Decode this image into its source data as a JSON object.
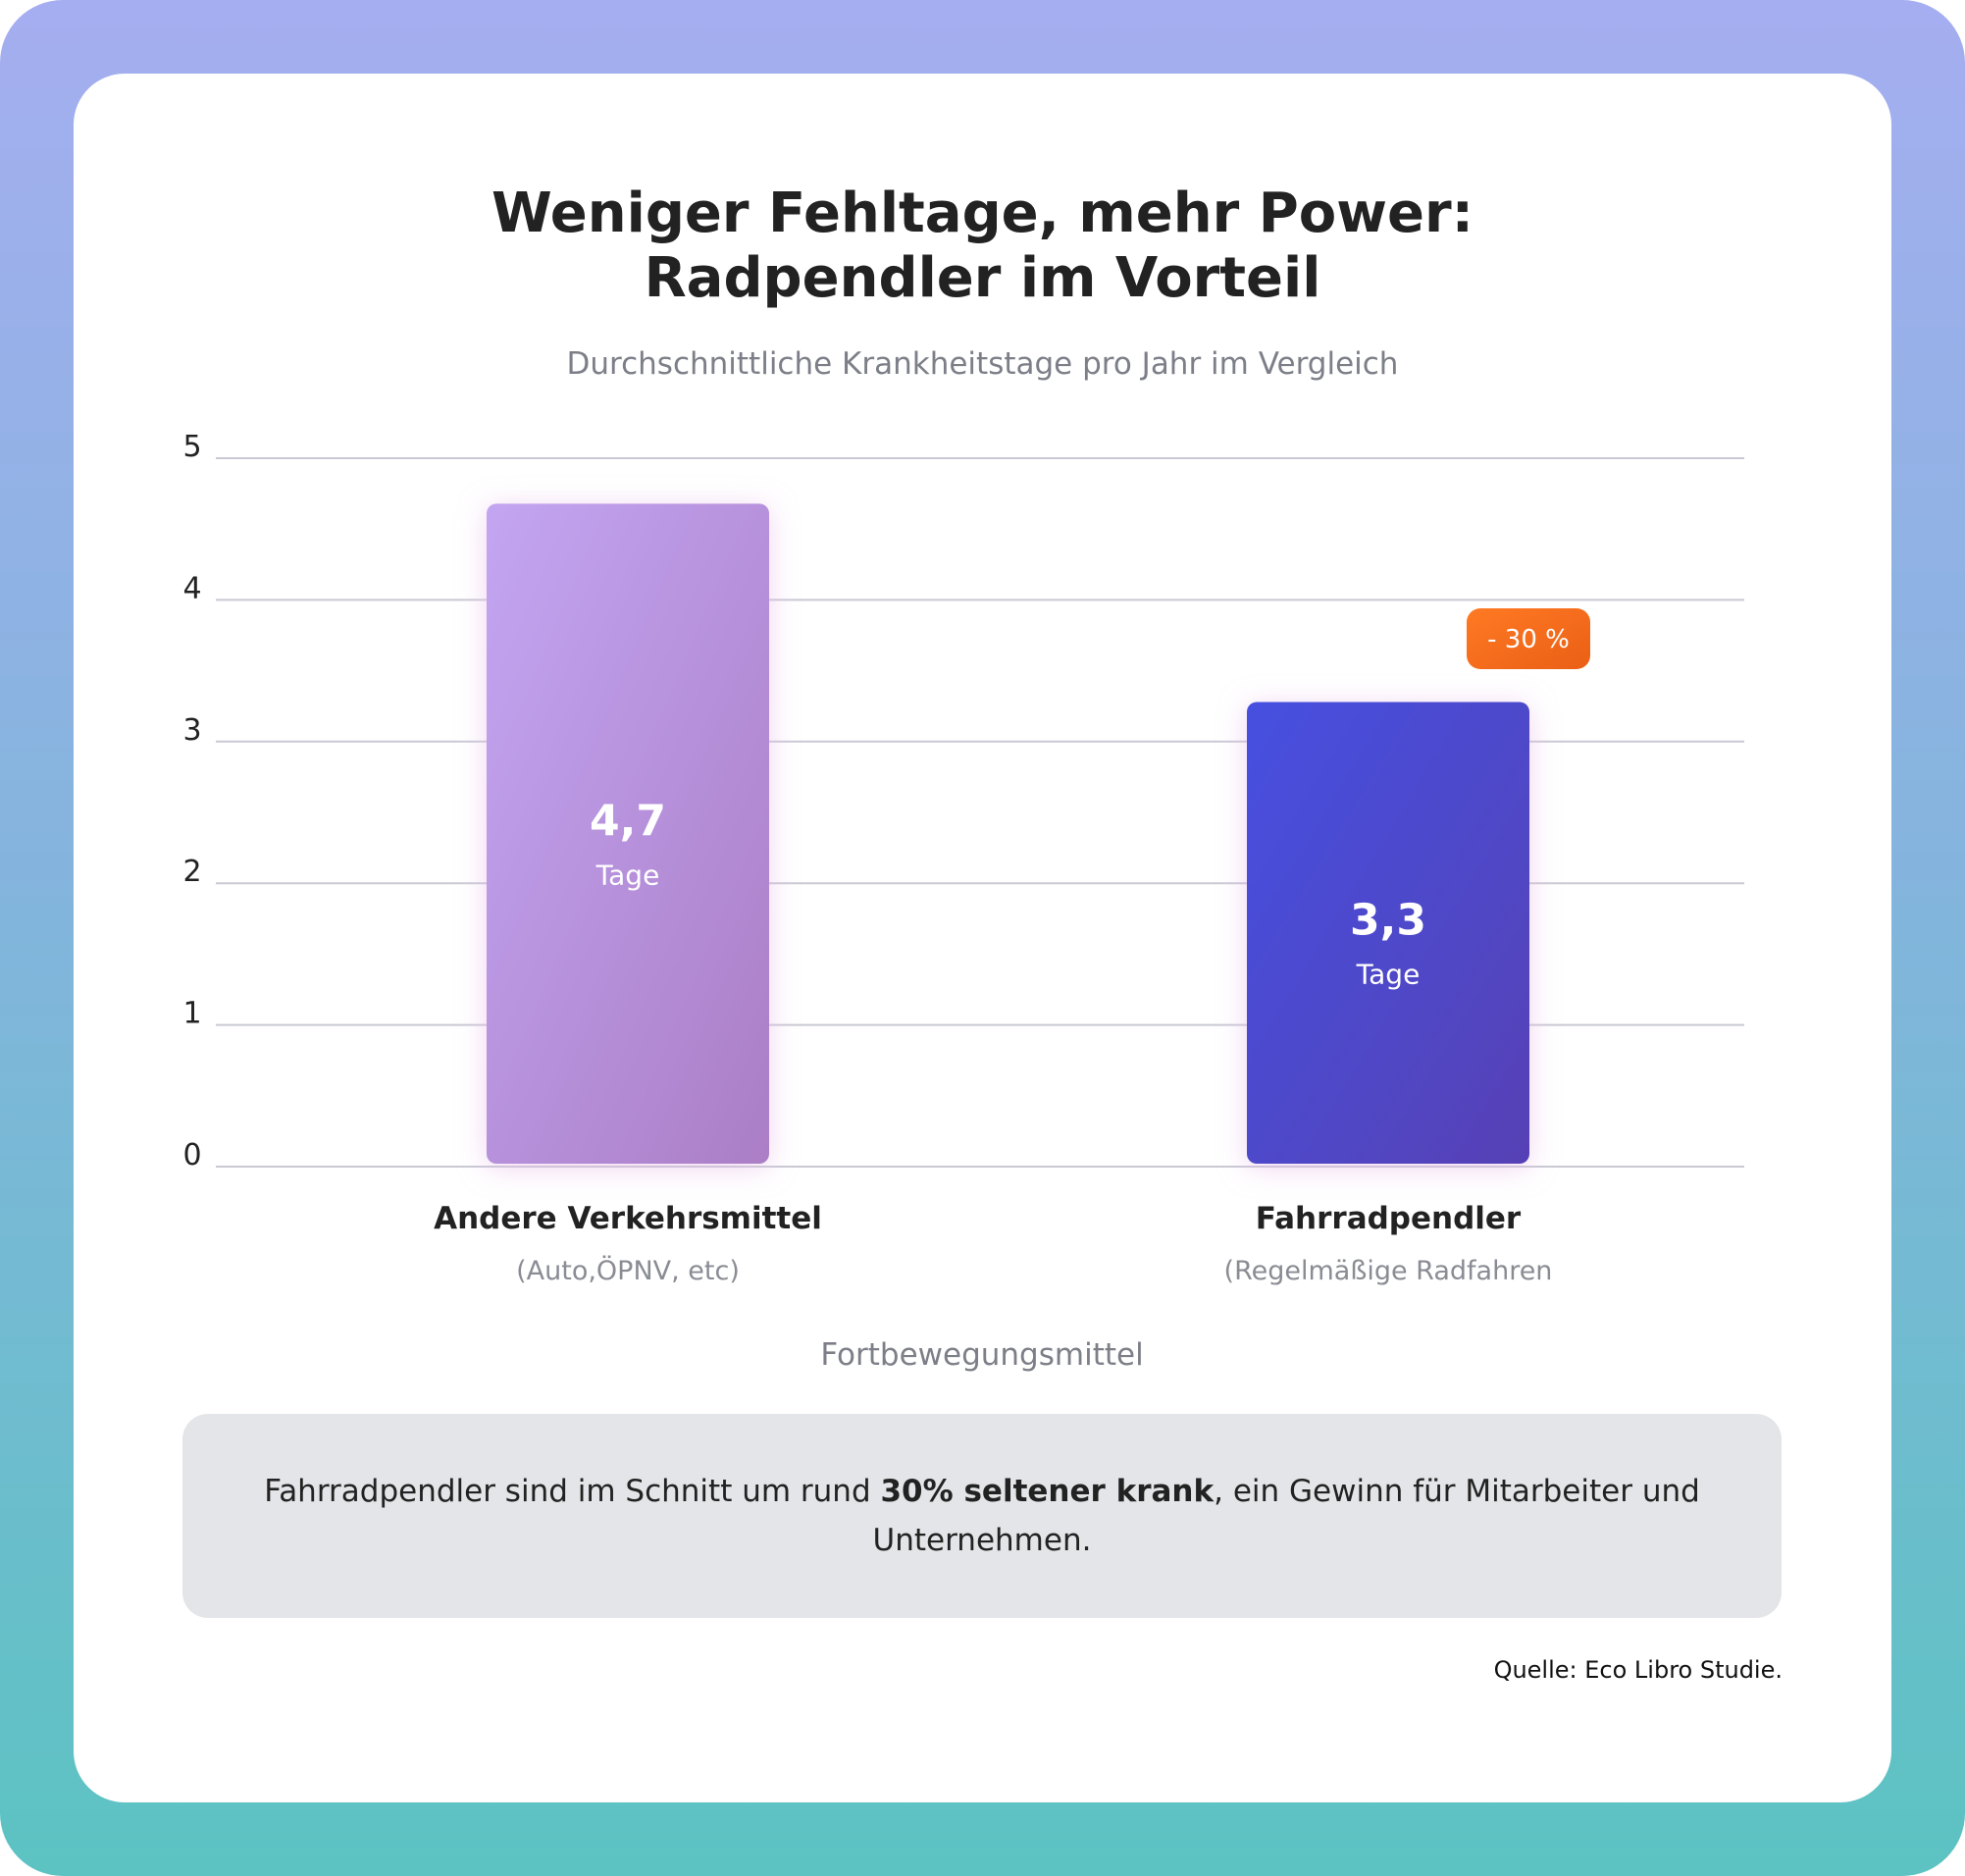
{
  "chart_data": {
    "type": "bar",
    "title": "Weniger Fehltage, mehr Power:\nRadpendler im Vorteil",
    "subtitle": "Durchschnittliche Krankheitstage pro Jahr im Vergleich",
    "xlabel": "Fortbewegungsmittel",
    "ylabel": "",
    "ylim": [
      0,
      5
    ],
    "yticks": [
      "0",
      "1",
      "2",
      "3",
      "4",
      "5"
    ],
    "grid": true,
    "categories": [
      "Andere Verkehrsmittel",
      "Fahrradpendler"
    ],
    "category_sublabels": [
      "(Auto,ÖPNV, etc)",
      "(Regelmäßige Radfahren"
    ],
    "values": [
      4.7,
      3.3
    ],
    "value_labels": [
      "4,7",
      "3,3"
    ],
    "value_unit": "Tage",
    "annotation": "- 30 %",
    "colors": {
      "bar_1": [
        "#c3a5f2",
        "#ab7ec6"
      ],
      "bar_2": [
        "#4650e0",
        "#5641b5"
      ],
      "badge": [
        "#ff7a24",
        "#ea5f15"
      ],
      "grid": "#c9c9d4"
    }
  },
  "note": {
    "before": "Fahrradpendler sind im Schnitt um rund ",
    "bold": "30% seltener krank",
    "after": ", ein Gewinn für Mitarbeiter und Unternehmen."
  },
  "source": "Quelle: Eco Libro Studie."
}
